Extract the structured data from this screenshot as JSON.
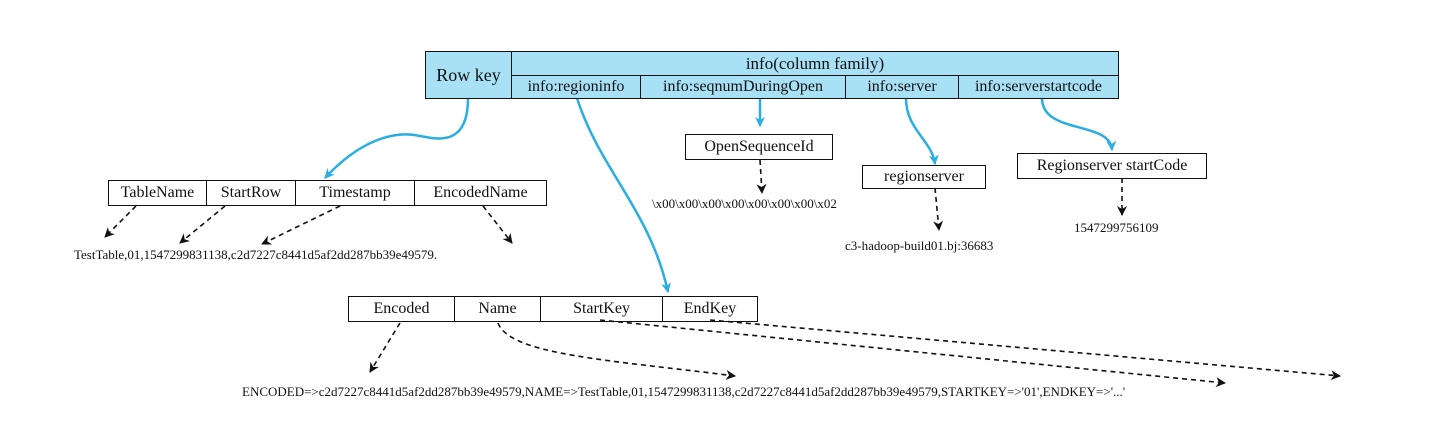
{
  "header": {
    "row_key": "Row key",
    "column_family": "info(column family)",
    "columns": [
      "info:regioninfo",
      "info:seqnumDuringOpen",
      "info:server",
      "info:serverstartcode"
    ]
  },
  "regionname_fields": [
    "TableName",
    "StartRow",
    "Timestamp",
    "EncodedName"
  ],
  "regionname_value": "TestTable,01,1547299831138,c2d7227c8441d5af2dd287bb39e49579.",
  "regioninfo_fields": [
    "Encoded",
    "Name",
    "StartKey",
    "EndKey"
  ],
  "regioninfo_value": "ENCODED=>c2d7227c8441d5af2dd287bb39e49579,NAME=>TestTable,01,1547299831138,c2d7227c8441d5af2dd287bb39e49579,STARTKEY=>'01',ENDKEY=>'...'",
  "seqnum": {
    "label": "OpenSequenceId",
    "value": "\\x00\\x00\\x00\\x00\\x00\\x00\\x00\\x02"
  },
  "server": {
    "label": "regionserver",
    "value": "c3-hadoop-build01.bj:36683"
  },
  "startcode": {
    "label": "Regionserver startCode",
    "value": "1547299756109"
  },
  "colors": {
    "header_fill": "#a8e0f5",
    "arrow_blue": "#29aee4",
    "line": "#111111"
  }
}
